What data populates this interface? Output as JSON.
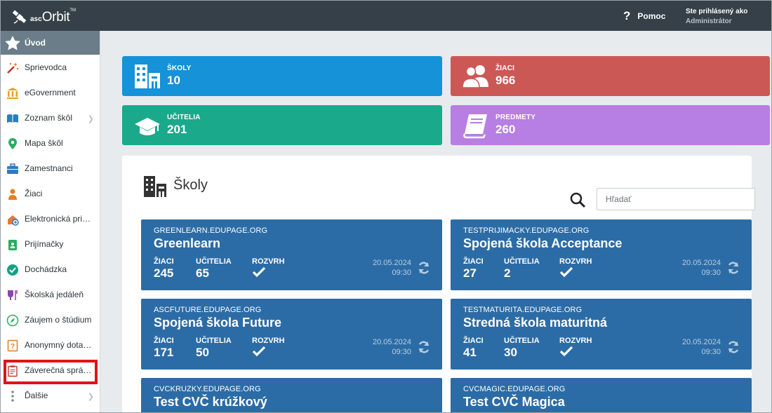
{
  "app": {
    "logo_asc": "asc",
    "logo_orbit": "Orbit",
    "logo_tm": "TM"
  },
  "header": {
    "help_label": "Pomoc",
    "user_line1": "Ste prihlásený ako",
    "user_line2": "Administrátor"
  },
  "sidebar": {
    "items": [
      {
        "label": "Úvod",
        "icon": "star-icon"
      },
      {
        "label": "Sprievodca",
        "icon": "magic-wand-icon"
      },
      {
        "label": "eGovernment",
        "icon": "bank-icon"
      },
      {
        "label": "Zoznam škôl",
        "icon": "school-book-icon"
      },
      {
        "label": "Mapa škôl",
        "icon": "map-pin-icon"
      },
      {
        "label": "Zamestnanci",
        "icon": "briefcase-icon"
      },
      {
        "label": "Žiaci",
        "icon": "student-icon"
      },
      {
        "label": "Elektronická prihláška",
        "icon": "application-icon"
      },
      {
        "label": "Prijímačky",
        "icon": "admission-icon"
      },
      {
        "label": "Dochádzka",
        "icon": "attendance-check-icon"
      },
      {
        "label": "Školská jedáleň",
        "icon": "canteen-icon"
      },
      {
        "label": "Záujem o štúdium",
        "icon": "compass-icon"
      },
      {
        "label": "Anonymný dotazník",
        "icon": "questionnaire-icon"
      },
      {
        "label": "Záverečná správa",
        "icon": "report-clipboard-icon"
      },
      {
        "label": "Ďalšie",
        "icon": "more-dots-icon"
      }
    ]
  },
  "tiles": {
    "skoly": {
      "label": "ŠKOLY",
      "value": "10",
      "color": "#1592d8"
    },
    "ziaci": {
      "label": "ŽIACI",
      "value": "966",
      "color": "#cc5856"
    },
    "ucitelia": {
      "label": "UČITELIA",
      "value": "201",
      "color": "#1aa98a"
    },
    "predmety": {
      "label": "PREDMETY",
      "value": "260",
      "color": "#b77ee3"
    }
  },
  "schools": {
    "title": "Školy",
    "search_placeholder": "Hľadať",
    "stat_labels": {
      "students": "ŽIACI",
      "teachers": "UČITELIA",
      "timetable": "ROZVRH"
    },
    "cards": [
      {
        "domain": "GREENLEARN.EDUPAGE.ORG",
        "name": "Greenlearn",
        "students": "245",
        "teachers": "65",
        "date": "20.05.2024",
        "time": "09:30"
      },
      {
        "domain": "TESTPRIJIMACKY.EDUPAGE.ORG",
        "name": "Spojená škola Acceptance",
        "students": "27",
        "teachers": "2",
        "date": "20.05.2024",
        "time": "09:30"
      },
      {
        "domain": "ASCFUTURE.EDUPAGE.ORG",
        "name": "Spojená škola Future",
        "students": "171",
        "teachers": "50",
        "date": "20.05.2024",
        "time": "09:30"
      },
      {
        "domain": "TESTMATURITA.EDUPAGE.ORG",
        "name": "Stredná škola maturitná",
        "students": "41",
        "teachers": "30",
        "date": "20.05.2024",
        "time": "09:30"
      },
      {
        "domain": "CVCKRUZKY.EDUPAGE.ORG",
        "name": "Test CVČ krúžkový"
      },
      {
        "domain": "CVCMAGIC.EDUPAGE.ORG",
        "name": "Test CVČ Magica"
      }
    ]
  },
  "colors": {
    "card_bg": "#2c6ca6",
    "topbar": "#354048",
    "sidebar_active": "#6a7d88",
    "highlight": "#e0131a"
  }
}
